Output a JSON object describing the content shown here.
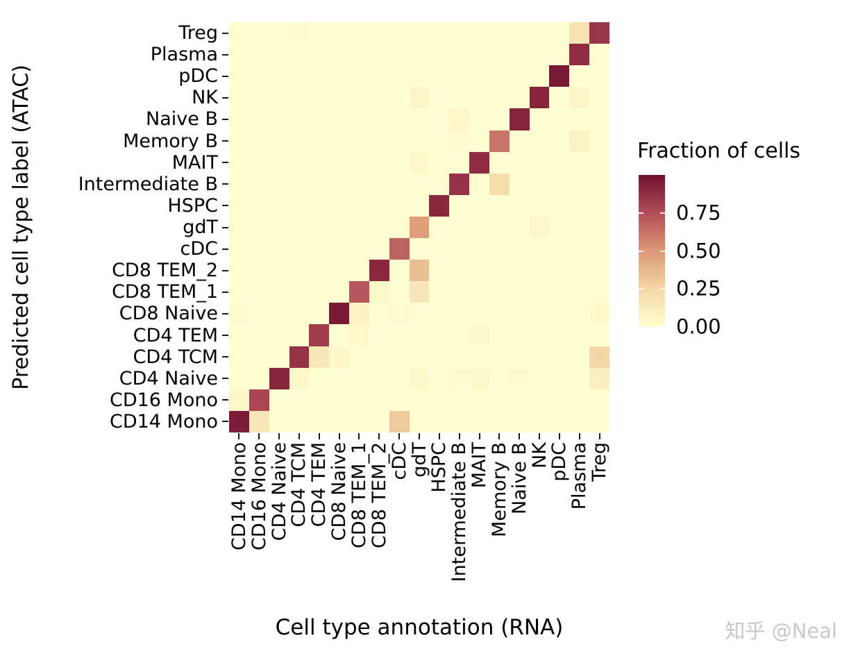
{
  "watermark": "知乎 @Neal",
  "chart_data": {
    "type": "heatmap",
    "title": "",
    "xlabel": "Cell type annotation (RNA)",
    "ylabel": "Predicted cell type label (ATAC)",
    "x_categories": [
      "CD14 Mono",
      "CD16 Mono",
      "CD4 Naive",
      "CD4 TCM",
      "CD4 TEM",
      "CD8 Naive",
      "CD8 TEM_1",
      "CD8 TEM_2",
      "cDC",
      "gdT",
      "HSPC",
      "Intermediate B",
      "MAIT",
      "Memory B",
      "Naive B",
      "NK",
      "pDC",
      "Plasma",
      "Treg"
    ],
    "y_categories": [
      "Treg",
      "Plasma",
      "pDC",
      "NK",
      "Naive B",
      "Memory B",
      "MAIT",
      "Intermediate B",
      "HSPC",
      "gdT",
      "cDC",
      "CD8 TEM_2",
      "CD8 TEM_1",
      "CD8 Naive",
      "CD4 TEM",
      "CD4 TCM",
      "CD4 Naive",
      "CD16 Mono",
      "CD14 Mono"
    ],
    "matrix": [
      [
        0,
        0,
        0,
        0.03,
        0,
        0,
        0,
        0,
        0,
        0,
        0,
        0,
        0,
        0,
        0,
        0,
        0,
        0.18,
        0.85
      ],
      [
        0,
        0,
        0,
        0,
        0,
        0,
        0,
        0,
        0,
        0,
        0,
        0,
        0,
        0,
        0,
        0,
        0,
        0.88,
        0
      ],
      [
        0,
        0,
        0,
        0,
        0,
        0,
        0,
        0,
        0,
        0,
        0,
        0,
        0,
        0,
        0,
        0,
        0.96,
        0,
        0
      ],
      [
        0,
        0,
        0,
        0,
        0,
        0,
        0,
        0,
        0,
        0.07,
        0,
        0,
        0,
        0,
        0,
        0.92,
        0,
        0.06,
        0
      ],
      [
        0,
        0,
        0,
        0,
        0,
        0,
        0,
        0,
        0,
        0,
        0,
        0.05,
        0,
        0,
        0.92,
        0,
        0,
        0,
        0
      ],
      [
        0,
        0,
        0,
        0,
        0,
        0,
        0,
        0,
        0,
        0,
        0,
        0.03,
        0,
        0.62,
        0,
        0,
        0,
        0.08,
        0
      ],
      [
        0,
        0,
        0,
        0,
        0,
        0,
        0,
        0,
        0,
        0.05,
        0,
        0,
        0.88,
        0,
        0,
        0,
        0,
        0,
        0
      ],
      [
        0,
        0,
        0,
        0,
        0,
        0,
        0,
        0,
        0,
        0,
        0,
        0.86,
        0,
        0.22,
        0,
        0,
        0,
        0,
        0
      ],
      [
        0,
        0,
        0,
        0,
        0,
        0,
        0,
        0,
        0,
        0,
        0.9,
        0,
        0,
        0,
        0,
        0,
        0,
        0,
        0
      ],
      [
        0,
        0,
        0,
        0,
        0,
        0,
        0,
        0,
        0,
        0.48,
        0,
        0,
        0,
        0,
        0,
        0.05,
        0,
        0,
        0
      ],
      [
        0,
        0,
        0,
        0,
        0,
        0,
        0,
        0,
        0.68,
        0,
        0,
        0,
        0,
        0,
        0,
        0,
        0,
        0,
        0
      ],
      [
        0,
        0,
        0,
        0,
        0,
        0,
        0,
        0.9,
        0,
        0.35,
        0,
        0,
        0,
        0,
        0,
        0,
        0,
        0,
        0
      ],
      [
        0,
        0,
        0,
        0,
        0,
        0,
        0.72,
        0.04,
        0,
        0.15,
        0,
        0,
        0,
        0,
        0,
        0,
        0,
        0,
        0
      ],
      [
        0.02,
        0,
        0,
        0,
        0,
        0.96,
        0.08,
        0,
        0.03,
        0,
        0,
        0,
        0,
        0,
        0,
        0,
        0,
        0,
        0.04
      ],
      [
        0,
        0,
        0,
        0,
        0.82,
        0,
        0.05,
        0,
        0,
        0,
        0,
        0,
        0.04,
        0,
        0,
        0,
        0,
        0,
        0
      ],
      [
        0,
        0,
        0,
        0.86,
        0.15,
        0.05,
        0,
        0,
        0,
        0,
        0,
        0,
        0,
        0,
        0,
        0,
        0,
        0,
        0.25
      ],
      [
        0,
        0,
        0.92,
        0.05,
        0,
        0,
        0,
        0,
        0,
        0.04,
        0,
        0.03,
        0.04,
        0,
        0.03,
        0,
        0,
        0,
        0.1
      ],
      [
        0.05,
        0.78,
        0,
        0,
        0,
        0,
        0,
        0,
        0,
        0,
        0,
        0,
        0,
        0,
        0,
        0,
        0,
        0,
        0
      ],
      [
        0.95,
        0.15,
        0,
        0,
        0,
        0,
        0,
        0,
        0.3,
        0,
        0,
        0,
        0,
        0,
        0,
        0,
        0,
        0,
        0
      ]
    ],
    "legend": {
      "title": "Fraction of cells",
      "tick_labels": [
        "0.75",
        "0.50",
        "0.25",
        "0.00"
      ],
      "tick_values": [
        0.75,
        0.5,
        0.25,
        0.0
      ],
      "range": [
        0,
        1
      ]
    },
    "colormap": {
      "stops": [
        [
          0.0,
          "#FFFFD2"
        ],
        [
          0.25,
          "#F3D7A6"
        ],
        [
          0.5,
          "#DD9876"
        ],
        [
          0.75,
          "#B24D58"
        ],
        [
          1.0,
          "#70102E"
        ]
      ]
    },
    "grid": false,
    "legend_position": "right"
  }
}
